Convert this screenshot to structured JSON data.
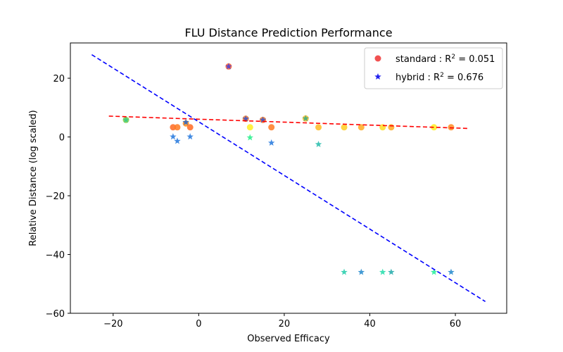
{
  "chart_data": {
    "type": "scatter",
    "title": "FLU Distance Prediction Performance",
    "xlabel": "Observed Efficacy",
    "ylabel": "Relative Distance (log scaled)",
    "xlim": [
      -30,
      72
    ],
    "ylim": [
      -60,
      32
    ],
    "xticks": [
      -20,
      0,
      20,
      40,
      60
    ],
    "yticks": [
      -60,
      -40,
      -20,
      0,
      20
    ],
    "legend": {
      "placement": "top-right"
    },
    "series": [
      {
        "name": "standard : R² = 0.051",
        "legend_label": "standard",
        "legend_r2": "0.051",
        "marker": "circle",
        "legend_color": "#ee3333",
        "points": [
          {
            "x": -17,
            "y": 5.8,
            "color": "#88cc44"
          },
          {
            "x": -6,
            "y": 3.3,
            "color": "#ff6a22"
          },
          {
            "x": -5,
            "y": 3.3,
            "color": "#ff7a22"
          },
          {
            "x": -3,
            "y": 4.6,
            "color": "#ff8c1a"
          },
          {
            "x": -2,
            "y": 3.3,
            "color": "#ff6a22"
          },
          {
            "x": 7,
            "y": 24,
            "color": "#ff5a28"
          },
          {
            "x": 11,
            "y": 6.2,
            "color": "#ff7a22"
          },
          {
            "x": 12,
            "y": 3.3,
            "color": "#ffee22"
          },
          {
            "x": 15,
            "y": 5.8,
            "color": "#ff7a22"
          },
          {
            "x": 17,
            "y": 3.3,
            "color": "#ff7a22"
          },
          {
            "x": 25,
            "y": 6.3,
            "color": "#ffbb22"
          },
          {
            "x": 28,
            "y": 3.3,
            "color": "#ffbb22"
          },
          {
            "x": 34,
            "y": 3.3,
            "color": "#ffcc22"
          },
          {
            "x": 38,
            "y": 3.3,
            "color": "#ffaa22"
          },
          {
            "x": 43,
            "y": 3.3,
            "color": "#ffdd22"
          },
          {
            "x": 45,
            "y": 3.3,
            "color": "#ffaa22"
          },
          {
            "x": 55,
            "y": 3.3,
            "color": "#ffee22"
          },
          {
            "x": 59,
            "y": 3.3,
            "color": "#ff8c22"
          }
        ],
        "fit": {
          "x": [
            -21,
            63
          ],
          "y": [
            7.1,
            2.9
          ],
          "color": "#ff0000"
        }
      },
      {
        "name": "hybrid : R² = 0.676",
        "legend_label": "hybrid",
        "legend_r2": "0.676",
        "marker": "star",
        "legend_color": "#2222ee",
        "points": [
          {
            "x": -17,
            "y": 5.8,
            "color": "#33cc88"
          },
          {
            "x": -6,
            "y": 0.1,
            "color": "#2277dd"
          },
          {
            "x": -5,
            "y": -1.4,
            "color": "#2277dd"
          },
          {
            "x": -3,
            "y": 5.0,
            "color": "#2266cc"
          },
          {
            "x": -2,
            "y": 0.1,
            "color": "#2277dd"
          },
          {
            "x": 7,
            "y": 24,
            "color": "#4444dd"
          },
          {
            "x": 11,
            "y": 6.2,
            "color": "#3355cc"
          },
          {
            "x": 12,
            "y": -0.2,
            "color": "#22ee88"
          },
          {
            "x": 15,
            "y": 5.8,
            "color": "#3355cc"
          },
          {
            "x": 17,
            "y": -2.0,
            "color": "#2277dd"
          },
          {
            "x": 25,
            "y": 6.3,
            "color": "#33aa88"
          },
          {
            "x": 28,
            "y": -2.5,
            "color": "#22bbaa"
          },
          {
            "x": 34,
            "y": -46,
            "color": "#22ccaa"
          },
          {
            "x": 38,
            "y": -46,
            "color": "#2288cc"
          },
          {
            "x": 43,
            "y": -46,
            "color": "#22ddaa"
          },
          {
            "x": 45,
            "y": -46,
            "color": "#22aaaa"
          },
          {
            "x": 55,
            "y": -46,
            "color": "#22ee99"
          },
          {
            "x": 59,
            "y": -46,
            "color": "#2288cc"
          }
        ],
        "fit": {
          "x": [
            -25,
            67
          ],
          "y": [
            28,
            -56
          ],
          "color": "#0000ff"
        }
      }
    ]
  }
}
